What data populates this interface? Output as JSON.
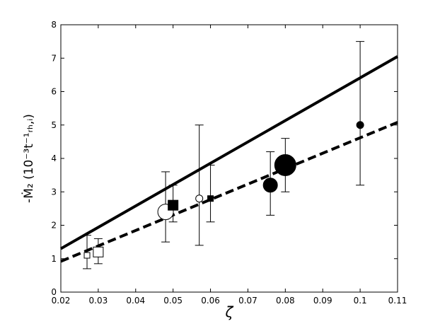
{
  "chart_data": {
    "type": "scatter",
    "x_label": "ζ",
    "y_label": "-Ṁ₂ (10⁻³t⁻¹ᵣₕ,ᵢ)",
    "xlim": [
      0.02,
      0.11
    ],
    "xticks": [
      0.02,
      0.03,
      0.04,
      0.05,
      0.06,
      0.07,
      0.08,
      0.09,
      0.1,
      0.11
    ],
    "ylim": [
      0,
      8
    ],
    "yticks": [
      0,
      1,
      2,
      3,
      4,
      5,
      6,
      7,
      8
    ],
    "color": "#000000",
    "points": {
      "x": [
        0.027,
        0.03,
        0.048,
        0.05,
        0.057,
        0.06,
        0.076,
        0.08,
        0.1
      ],
      "values": [
        1.1,
        1.2,
        2.4,
        2.6,
        2.8,
        2.8,
        3.2,
        3.8,
        5.0
      ],
      "ylow": [
        0.7,
        0.85,
        1.5,
        2.1,
        1.4,
        2.1,
        2.3,
        3.0,
        3.2
      ],
      "yhigh": [
        1.7,
        1.6,
        3.6,
        3.2,
        5.0,
        3.8,
        4.2,
        4.6,
        7.5
      ],
      "shape": [
        "square",
        "square",
        "circle",
        "square",
        "circle",
        "square",
        "circle",
        "circle",
        "circle"
      ],
      "filled": [
        false,
        false,
        false,
        true,
        false,
        true,
        true,
        true,
        true
      ],
      "size": [
        4,
        7,
        11,
        7,
        5,
        4,
        10,
        15,
        5
      ]
    },
    "lines": [
      {
        "style": "solid",
        "x": [
          0.02,
          0.11
        ],
        "values": [
          1.3,
          7.05
        ]
      },
      {
        "style": "dashed",
        "x": [
          0.02,
          0.11
        ],
        "values": [
          0.92,
          5.08
        ]
      }
    ]
  }
}
